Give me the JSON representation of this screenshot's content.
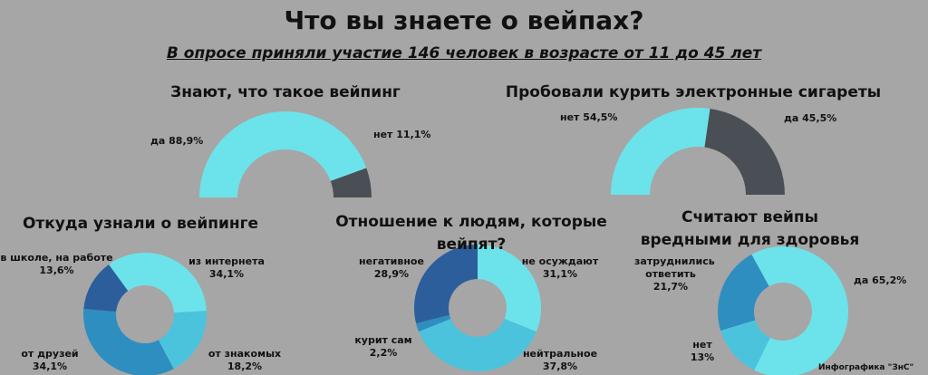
{
  "title": "Что вы знаете о вейпах?",
  "subtitle": "В опросе приняли участие 146 человек в возрасте от 11 до 45 лет",
  "credit": "Инфографика \"ЗнС\"",
  "colors": {
    "background": "#a6a6a6",
    "cyan": "#6ce3ea",
    "dark": "#4a4f55",
    "blue_light": "#4cc3dc",
    "blue_mid": "#2e8ec0",
    "blue_dark": "#2d5e9c"
  },
  "chart_data": [
    {
      "type": "pie",
      "variant": "half-donut",
      "title": "Знают, что такое вейпинг",
      "slices": [
        {
          "label": "да 88,9%",
          "value": 88.9,
          "color": "#6ce3ea"
        },
        {
          "label": "нет 11,1%",
          "value": 11.1,
          "color": "#4a4f55"
        }
      ]
    },
    {
      "type": "pie",
      "variant": "half-donut",
      "title": "Пробовали курить электронные сигареты",
      "slices": [
        {
          "label": "нет 54,5%",
          "value": 54.5,
          "color": "#6ce3ea"
        },
        {
          "label": "да 45,5%",
          "value": 45.5,
          "color": "#4a4f55"
        }
      ]
    },
    {
      "type": "pie",
      "variant": "donut",
      "title": "Откуда узнали о вейпинге",
      "slices": [
        {
          "label": "из интернета",
          "pct": "34,1%",
          "value": 34.1,
          "color": "#6ce3ea"
        },
        {
          "label": "от знакомых",
          "pct": "18,2%",
          "value": 18.2,
          "color": "#4cc3dc"
        },
        {
          "label": "от друзей",
          "pct": "34,1%",
          "value": 34.1,
          "color": "#2e8ec0"
        },
        {
          "label": "в школе, на работе",
          "pct": "13,6%",
          "value": 13.6,
          "color": "#2d5e9c"
        }
      ]
    },
    {
      "type": "pie",
      "variant": "donut",
      "title": "Отношение к людям, которые вейпят?",
      "slices": [
        {
          "label": "не осуждают",
          "pct": "31,1%",
          "value": 31.1,
          "color": "#6ce3ea"
        },
        {
          "label": "нейтральное",
          "pct": "37,8%",
          "value": 37.8,
          "color": "#4cc3dc"
        },
        {
          "label": "курит сам",
          "pct": "2,2%",
          "value": 2.2,
          "color": "#2e8ec0"
        },
        {
          "label": "негативное",
          "pct": "28,9%",
          "value": 28.9,
          "color": "#2d5e9c"
        }
      ]
    },
    {
      "type": "pie",
      "variant": "donut",
      "title": "Считают вейпы вредными для здоровья",
      "slices": [
        {
          "label": "да",
          "pct": "65,2%",
          "value": 65.2,
          "color": "#6ce3ea"
        },
        {
          "label": "нет",
          "pct": "13%",
          "value": 13.0,
          "color": "#4cc3dc"
        },
        {
          "label": "затруднились ответить",
          "pct": "21,7%",
          "value": 21.7,
          "color": "#2e8ec0"
        }
      ]
    }
  ]
}
